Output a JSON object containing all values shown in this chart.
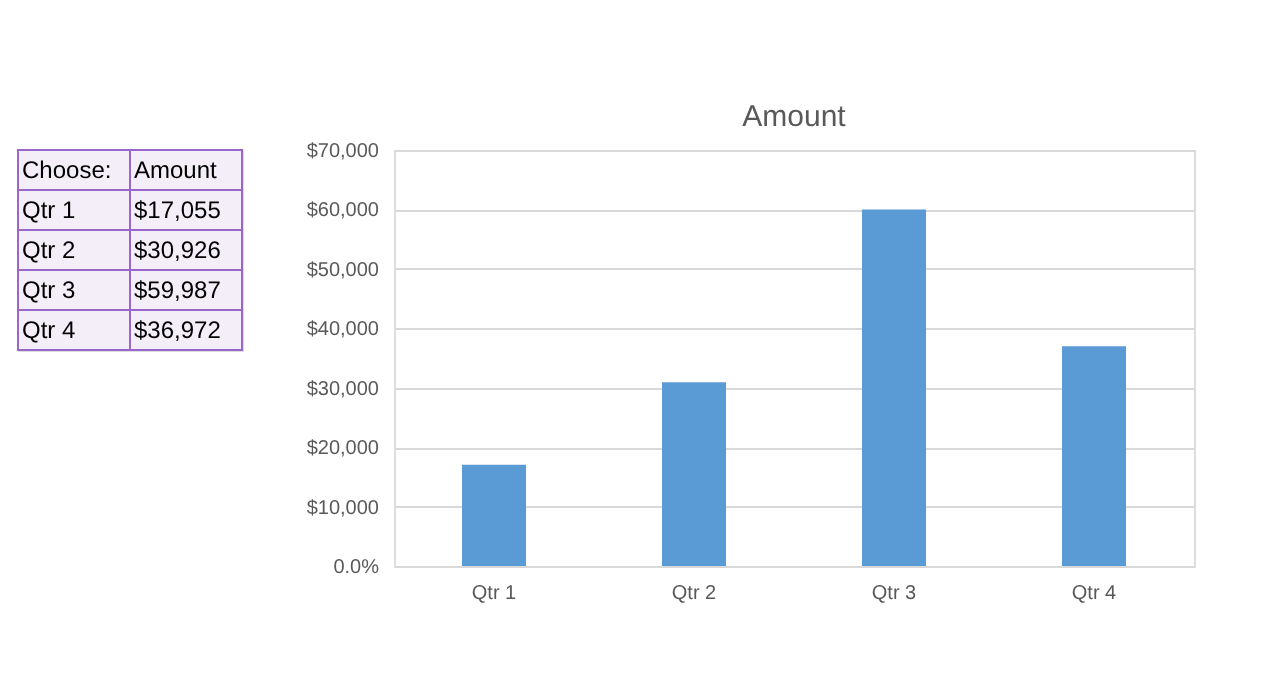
{
  "chart_data": {
    "type": "bar",
    "title": "Amount",
    "categories": [
      "Qtr 1",
      "Qtr 2",
      "Qtr 3",
      "Qtr 4"
    ],
    "values": [
      17055,
      30926,
      59987,
      36972
    ],
    "color": "#5b9bd5",
    "annotations": [
      "Choose:",
      "Amount",
      "Qtr 1",
      "$17,055",
      "Qtr 2",
      "$30,926",
      "Qtr 3",
      "$59,987",
      "Qtr 4",
      "$36,972"
    ],
    "ylim": [
      0,
      70000
    ],
    "yticks": [
      {
        "value": 0,
        "label": "0.0%"
      },
      {
        "value": 10000,
        "label": "$10,000"
      },
      {
        "value": 20000,
        "label": "$20,000"
      },
      {
        "value": 30000,
        "label": "$30,000"
      },
      {
        "value": 40000,
        "label": "$40,000"
      },
      {
        "value": 50000,
        "label": "$50,000"
      },
      {
        "value": 60000,
        "label": "$60,000"
      },
      {
        "value": 70000,
        "label": "$70,000"
      }
    ],
    "grid": "y"
  }
}
